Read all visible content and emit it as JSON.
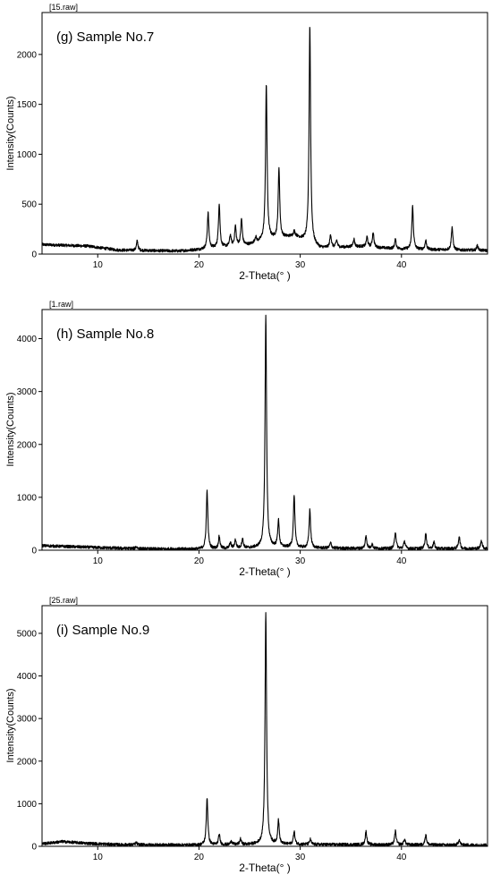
{
  "chart_data": [
    {
      "type": "line",
      "file_label": "[15.raw]",
      "title": "(g) Sample No.7",
      "xlabel": "2-Theta(° )",
      "ylabel": "Intensity(Counts)",
      "xlim": [
        4.5,
        48.5
      ],
      "ylim": [
        0,
        2420
      ],
      "xticks": [
        10,
        20,
        30,
        40
      ],
      "yticks": [
        0,
        500,
        1000,
        1500,
        2000
      ],
      "baseline": [
        [
          4.5,
          95
        ],
        [
          9,
          80
        ],
        [
          12,
          40
        ],
        [
          18,
          30
        ],
        [
          20,
          45
        ],
        [
          25,
          95
        ],
        [
          27,
          150
        ],
        [
          29.5,
          180
        ],
        [
          32,
          60
        ],
        [
          36,
          75
        ],
        [
          40,
          50
        ],
        [
          48.5,
          35
        ]
      ],
      "peaks": [
        [
          13.9,
          95
        ],
        [
          20.9,
          360
        ],
        [
          22.0,
          440
        ],
        [
          23.1,
          110
        ],
        [
          23.6,
          195
        ],
        [
          24.2,
          260
        ],
        [
          25.6,
          55
        ],
        [
          26.65,
          1560
        ],
        [
          27.9,
          700
        ],
        [
          29.4,
          45
        ],
        [
          30.95,
          2180
        ],
        [
          33.0,
          130
        ],
        [
          33.6,
          70
        ],
        [
          35.3,
          80
        ],
        [
          36.6,
          100
        ],
        [
          37.2,
          150
        ],
        [
          39.4,
          90
        ],
        [
          41.1,
          430
        ],
        [
          42.4,
          90
        ],
        [
          45.0,
          230
        ],
        [
          47.5,
          50
        ]
      ]
    },
    {
      "type": "line",
      "file_label": "[1.raw]",
      "title": "(h) Sample No.8",
      "xlabel": "2-Theta(° )",
      "ylabel": "Intensity(Counts)",
      "xlim": [
        4.5,
        48.5
      ],
      "ylim": [
        0,
        4550
      ],
      "xticks": [
        10,
        20,
        30,
        40
      ],
      "yticks": [
        0,
        1000,
        2000,
        3000,
        4000
      ],
      "baseline": [
        [
          4.5,
          85
        ],
        [
          10,
          50
        ],
        [
          15,
          25
        ],
        [
          20,
          20
        ],
        [
          25,
          40
        ],
        [
          27,
          60
        ],
        [
          30,
          45
        ],
        [
          35,
          35
        ],
        [
          40,
          30
        ],
        [
          48.5,
          30
        ]
      ],
      "peaks": [
        [
          13.8,
          40
        ],
        [
          20.8,
          1100
        ],
        [
          22.0,
          230
        ],
        [
          23.1,
          110
        ],
        [
          23.6,
          160
        ],
        [
          24.3,
          180
        ],
        [
          26.6,
          4380
        ],
        [
          27.85,
          500
        ],
        [
          29.4,
          990
        ],
        [
          30.95,
          720
        ],
        [
          33.0,
          100
        ],
        [
          36.5,
          240
        ],
        [
          37.1,
          80
        ],
        [
          39.4,
          320
        ],
        [
          40.3,
          140
        ],
        [
          42.4,
          290
        ],
        [
          43.2,
          120
        ],
        [
          45.7,
          230
        ],
        [
          47.9,
          160
        ]
      ]
    },
    {
      "type": "line",
      "file_label": "[25.raw]",
      "title": "(i) Sample No.9",
      "xlabel": "2-Theta(° )",
      "ylabel": "Intensity(Counts)",
      "xlim": [
        4.5,
        48.5
      ],
      "ylim": [
        0,
        5650
      ],
      "xticks": [
        10,
        20,
        30,
        40
      ],
      "yticks": [
        0,
        1000,
        2000,
        3000,
        4000,
        5000
      ],
      "baseline": [
        [
          4.5,
          60
        ],
        [
          6.5,
          110
        ],
        [
          9,
          70
        ],
        [
          12,
          40
        ],
        [
          20,
          30
        ],
        [
          26,
          45
        ],
        [
          30,
          45
        ],
        [
          36,
          40
        ],
        [
          48.5,
          30
        ]
      ],
      "peaks": [
        [
          13.8,
          50
        ],
        [
          20.8,
          1110
        ],
        [
          22.0,
          240
        ],
        [
          23.2,
          90
        ],
        [
          24.1,
          130
        ],
        [
          26.6,
          5450
        ],
        [
          27.85,
          560
        ],
        [
          29.4,
          300
        ],
        [
          31.0,
          120
        ],
        [
          36.5,
          310
        ],
        [
          39.4,
          320
        ],
        [
          40.3,
          130
        ],
        [
          42.4,
          240
        ],
        [
          45.7,
          130
        ]
      ]
    }
  ]
}
